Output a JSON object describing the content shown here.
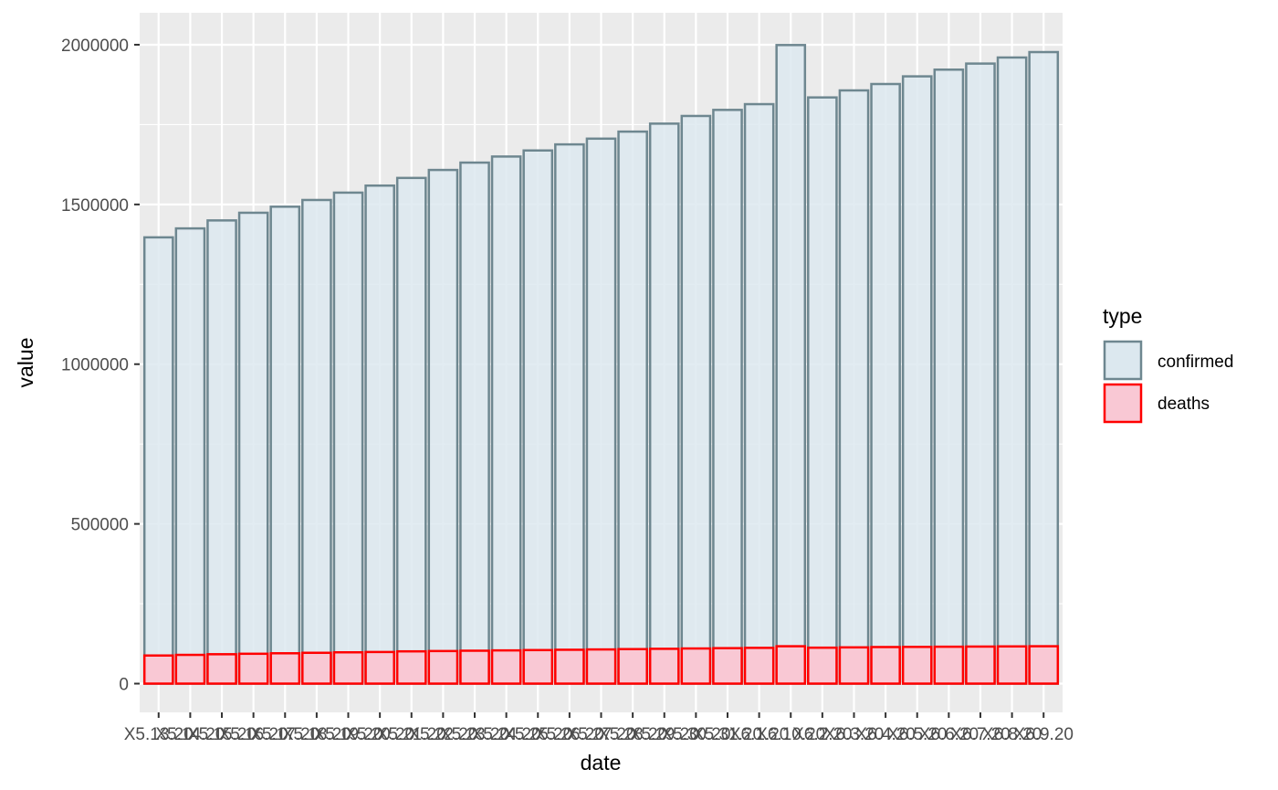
{
  "chart_data": {
    "type": "bar",
    "title": "",
    "xlabel": "date",
    "ylabel": "value",
    "ylim": [
      -90000,
      2100000
    ],
    "yticks": [
      0,
      500000,
      1000000,
      1500000,
      2000000
    ],
    "ytick_labels": [
      "0",
      "500000",
      "1000000",
      "1500000",
      "2000000"
    ],
    "grid": true,
    "legend_position": "right",
    "legend_title": "type",
    "categories": [
      "X5.13.20",
      "X5.14.20",
      "X5.15.20",
      "X5.16.20",
      "X5.17.20",
      "X5.18.20",
      "X5.19.20",
      "X5.20.20",
      "X5.21.20",
      "X5.22.20",
      "X5.23.20",
      "X5.24.20",
      "X5.25.20",
      "X5.26.20",
      "X5.27.20",
      "X5.28.20",
      "X5.29.20",
      "X5.30.20",
      "X5.31.20",
      "X6.1.20",
      "X6.10.20",
      "X6.2.20",
      "X6.3.20",
      "X6.4.20",
      "X6.5.20",
      "X6.6.20",
      "X6.7.20",
      "X6.8.20",
      "X6.9.20"
    ],
    "series": [
      {
        "name": "confirmed",
        "fill": "#dce8ef",
        "stroke": "#6e8790",
        "values": [
          1397000,
          1425000,
          1450000,
          1474000,
          1493000,
          1514000,
          1537000,
          1559000,
          1583000,
          1608000,
          1631000,
          1650000,
          1669000,
          1688000,
          1706000,
          1728000,
          1753000,
          1777000,
          1796000,
          1814000,
          1999000,
          1835000,
          1857000,
          1877000,
          1901000,
          1922000,
          1941000,
          1960000,
          1977000
        ]
      },
      {
        "name": "deaths",
        "fill": "#f9c8d4",
        "stroke": "#ff0000",
        "values": [
          88000,
          90000,
          92000,
          93500,
          95000,
          96500,
          98000,
          99000,
          101000,
          102000,
          103000,
          104000,
          105000,
          106000,
          107000,
          108000,
          109000,
          110000,
          111000,
          112000,
          117000,
          112500,
          113500,
          114500,
          115000,
          115500,
          116000,
          116500,
          117000
        ]
      }
    ]
  }
}
